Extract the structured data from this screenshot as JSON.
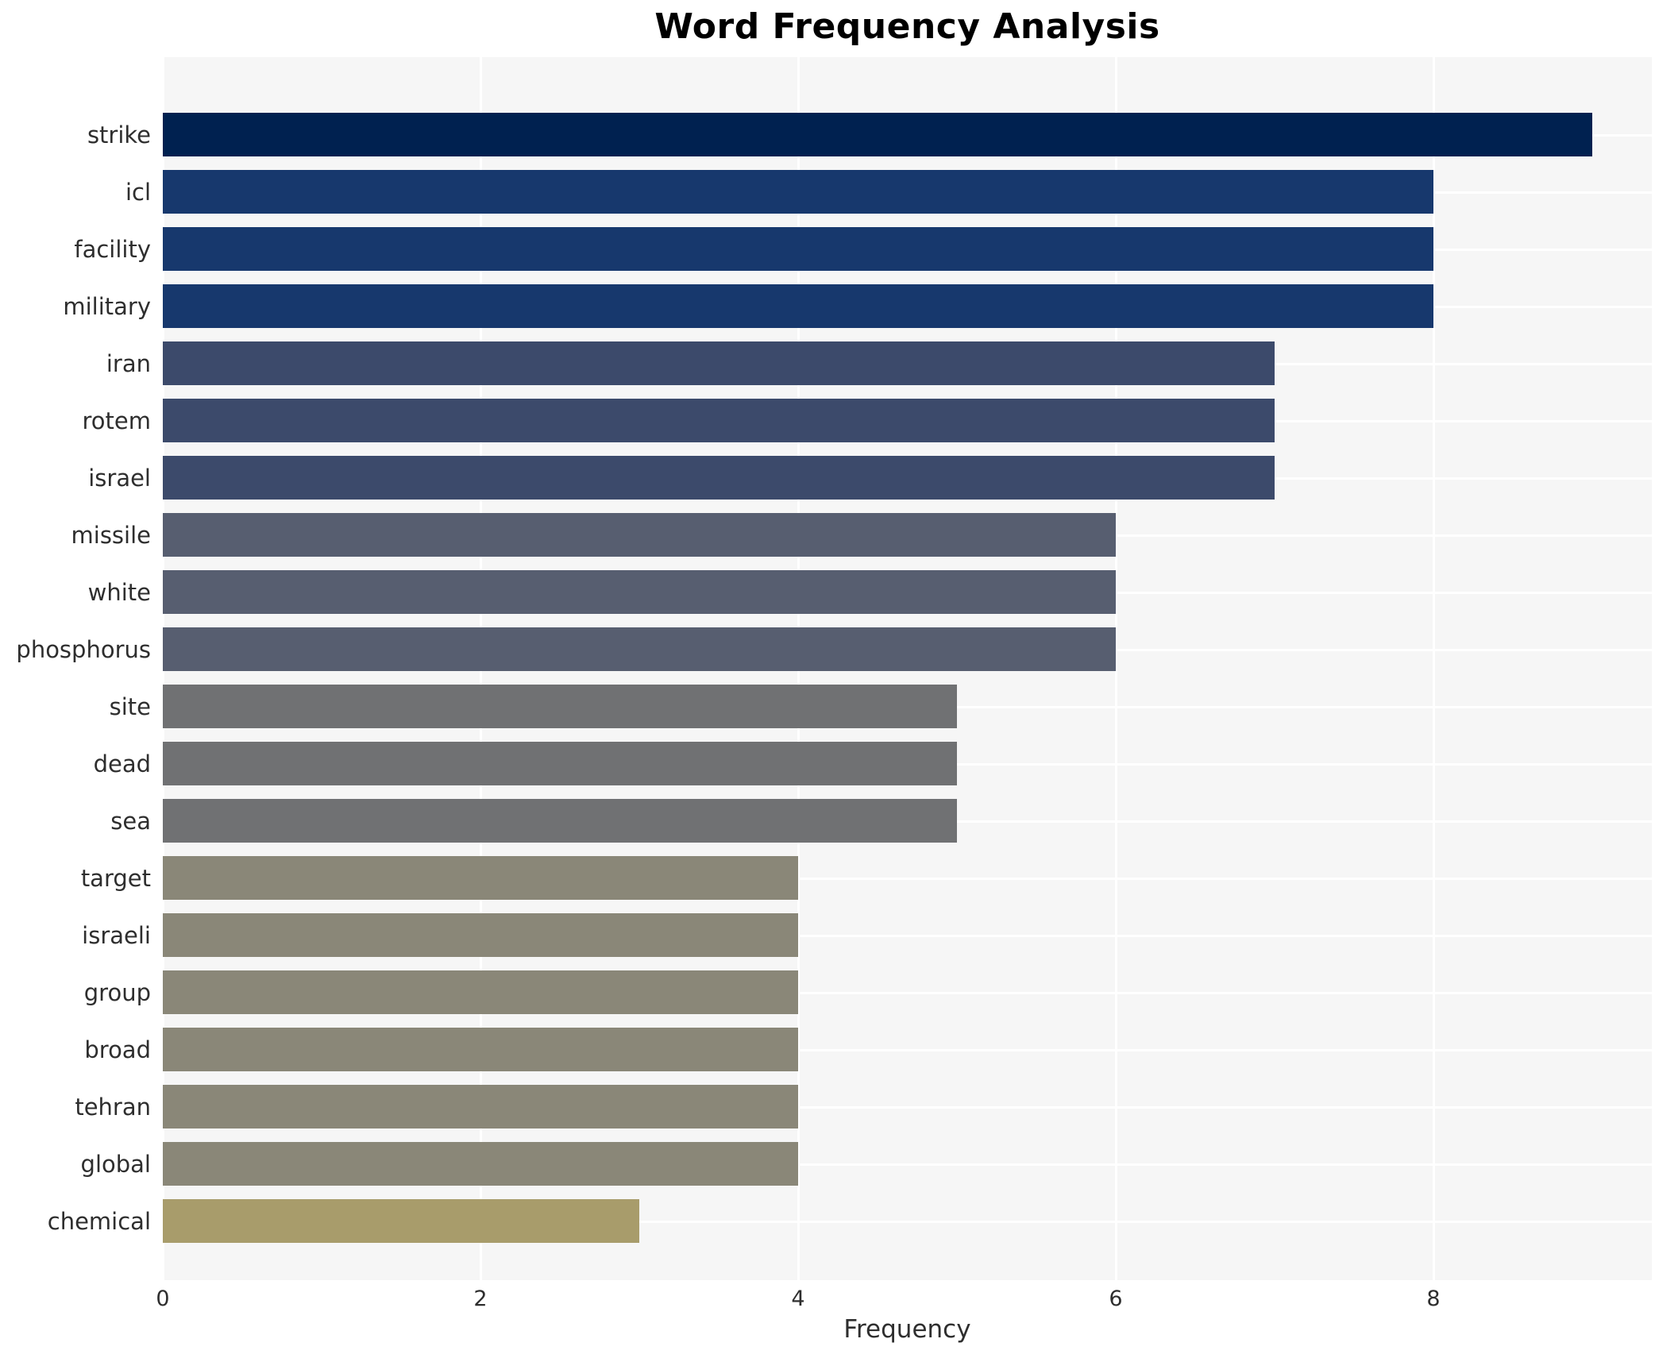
{
  "chart_data": {
    "type": "bar",
    "orientation": "horizontal",
    "title": "Word Frequency Analysis",
    "xlabel": "Frequency",
    "ylabel": "",
    "categories": [
      "strike",
      "icl",
      "facility",
      "military",
      "iran",
      "rotem",
      "israel",
      "missile",
      "white",
      "phosphorus",
      "site",
      "dead",
      "sea",
      "target",
      "israeli",
      "group",
      "broad",
      "tehran",
      "global",
      "chemical"
    ],
    "values": [
      9,
      8,
      8,
      8,
      7,
      7,
      7,
      6,
      6,
      6,
      5,
      5,
      5,
      4,
      4,
      4,
      4,
      4,
      4,
      3
    ],
    "bar_colors": [
      "#002150",
      "#17386d",
      "#17386d",
      "#17386d",
      "#3c4a6b",
      "#3c4a6b",
      "#3c4a6b",
      "#575e70",
      "#575e70",
      "#575e70",
      "#707173",
      "#707173",
      "#707173",
      "#8a8778",
      "#8a8778",
      "#8a8778",
      "#8a8778",
      "#8a8778",
      "#8a8778",
      "#a89c6b"
    ],
    "xticks": [
      0,
      2,
      4,
      6,
      8
    ],
    "xtick_labels": [
      "0",
      "2",
      "4",
      "6",
      "8"
    ],
    "xlim": [
      0,
      9.375
    ],
    "grid": "on",
    "legend": "none"
  },
  "styles": {
    "plot_background": "#f6f6f6",
    "grid_color": "#ffffff",
    "text_color": "#2e2e2e",
    "title_color": "#000000",
    "figure_background": "#ffffff"
  }
}
